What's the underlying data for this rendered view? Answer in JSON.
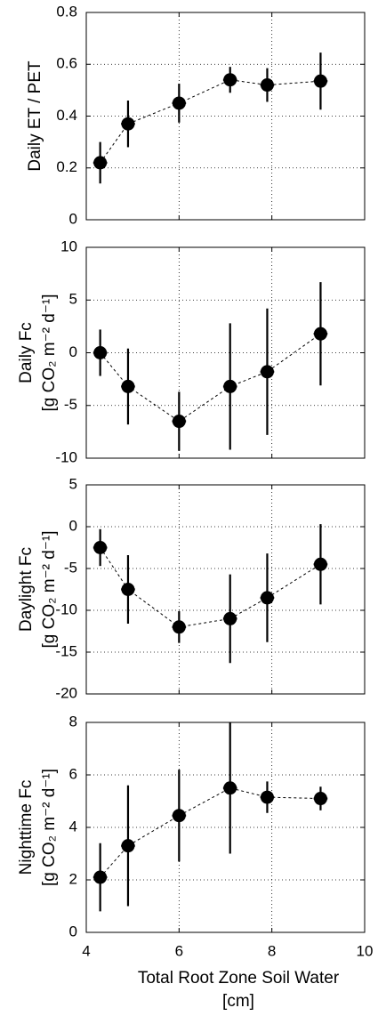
{
  "chart_data": [
    {
      "type": "errorbar",
      "ylabel": [
        "Daily ET / PET"
      ],
      "x": [
        4.3,
        4.9,
        6.0,
        7.1,
        7.9,
        9.05
      ],
      "xerr": [
        0.15,
        0.15,
        0.15,
        0.15,
        0.15,
        0.15
      ],
      "values": [
        0.22,
        0.37,
        0.45,
        0.54,
        0.52,
        0.535
      ],
      "errors": [
        0.08,
        0.09,
        0.075,
        0.05,
        0.065,
        0.11
      ],
      "xlim": [
        4,
        10
      ],
      "xticks": [
        4,
        6,
        8,
        10
      ],
      "ylim": [
        0,
        0.8
      ],
      "yticks": [
        0,
        0.2,
        0.4,
        0.6,
        0.8
      ],
      "grid": true,
      "color": "#000000"
    },
    {
      "type": "errorbar",
      "ylabel": [
        "Daily Fc",
        "[g CO₂ m⁻² d⁻¹]"
      ],
      "x": [
        4.3,
        4.9,
        6.0,
        7.1,
        7.9,
        9.05
      ],
      "xerr": [
        0.15,
        0.15,
        0.15,
        0.15,
        0.15,
        0.15
      ],
      "values": [
        0,
        -3.2,
        -6.5,
        -3.2,
        -1.8,
        1.8
      ],
      "errors": [
        2.2,
        3.6,
        2.8,
        6,
        6,
        4.9
      ],
      "xlim": [
        4,
        10
      ],
      "xticks": [
        4,
        6,
        8,
        10
      ],
      "ylim": [
        -10,
        10
      ],
      "yticks": [
        -10,
        -5,
        0,
        5,
        10
      ],
      "grid": true,
      "color": "#000000"
    },
    {
      "type": "errorbar",
      "ylabel": [
        "Daylight Fc",
        "[g CO₂ m⁻² d⁻¹]"
      ],
      "x": [
        4.3,
        4.9,
        6.0,
        7.1,
        7.9,
        9.05
      ],
      "xerr": [
        0.15,
        0.15,
        0.15,
        0.15,
        0.15,
        0.15
      ],
      "values": [
        -2.5,
        -7.5,
        -12,
        -11,
        -8.5,
        -4.5
      ],
      "errors": [
        2.2,
        4.1,
        1.9,
        5.3,
        5.3,
        4.8
      ],
      "xlim": [
        4,
        10
      ],
      "xticks": [
        4,
        6,
        8,
        10
      ],
      "ylim": [
        -20,
        5
      ],
      "yticks": [
        -20,
        -15,
        -10,
        -5,
        0,
        5
      ],
      "grid": true,
      "color": "#000000"
    },
    {
      "type": "errorbar",
      "ylabel": [
        "Nighttime Fc",
        "[g CO₂ m⁻² d⁻¹]"
      ],
      "xlabel": [
        "Total Root Zone Soil Water",
        "[cm]"
      ],
      "x": [
        4.3,
        4.9,
        6.0,
        7.1,
        7.9,
        9.05
      ],
      "xerr": [
        0.15,
        0.15,
        0.15,
        0.15,
        0.15,
        0.15
      ],
      "values": [
        2.1,
        3.3,
        4.45,
        5.5,
        5.15,
        5.1
      ],
      "errors": [
        1.3,
        2.3,
        1.75,
        2.5,
        0.6,
        0.45
      ],
      "xlim": [
        4,
        10
      ],
      "xticks": [
        4,
        6,
        8,
        10
      ],
      "ylim": [
        0,
        8
      ],
      "yticks": [
        0,
        2,
        4,
        6,
        8
      ],
      "grid": true,
      "color": "#000000"
    }
  ]
}
